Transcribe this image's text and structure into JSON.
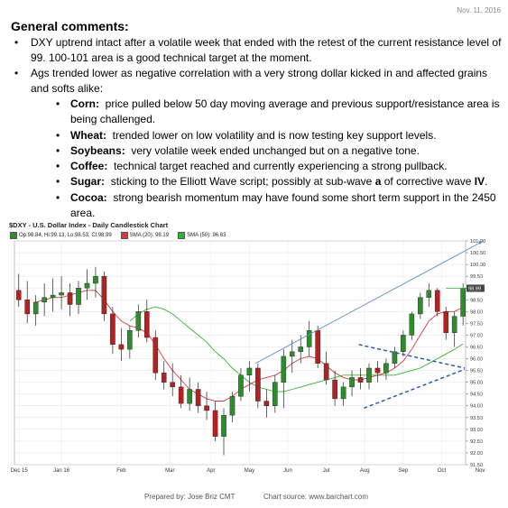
{
  "date": "Nov. 11, 2016",
  "heading": "General comments:",
  "bullets": [
    "DXY uptrend intact after a volatile week that ended with the retest of the current resistance level of 99.  100-101 area is a good technical target at the moment.",
    "Ags trended lower as negative correlation with a very strong dollar kicked in and affected grains and softs alike:"
  ],
  "sub_bullets": [
    {
      "label": "Corn:",
      "text": "price pulled below 50 day moving average and previous support/resistance area is being challenged."
    },
    {
      "label": "Wheat:",
      "text": "trended lower on low volatility and is now testing key support levels."
    },
    {
      "label": "Soybeans:",
      "text": "very volatile week ended unchanged but on a negative tone."
    },
    {
      "label": "Coffee:",
      "text": "technical target reached and currently experiencing a strong pullback."
    },
    {
      "label": "Sugar:",
      "text_before": "sticking to the Elliott Wave script; possibly at sub-wave",
      "bold_a": "a",
      "text_mid": "of corrective wave",
      "bold_iv": "IV",
      "text_end": "."
    },
    {
      "label": "Cocoa:",
      "text": "strong bearish momentum may have found some short term support in the 2450 area."
    }
  ],
  "footer": {
    "prepared_by": "Prepared by:  Jose Briz CMT",
    "source": "Chart source:  www.barchart.com"
  },
  "chart_data": {
    "type": "candlestick",
    "title": "$DXY - U.S. Dollar Index - Daily Candlestick Chart",
    "legend": [
      {
        "label": "Op:98.84, Hi:99.13, Lo:98.53, Cl:98.99",
        "color": "#2e8b2e"
      },
      {
        "label": "SMA (20): 98.19",
        "color": "#d63a3a"
      },
      {
        "label": "SMA (50): 96.63",
        "color": "#2fb52f"
      }
    ],
    "ylim": [
      91.5,
      101.0
    ],
    "y_ticks": [
      "101.00",
      "100.50",
      "100.00",
      "99.50",
      "99.00",
      "98.50",
      "98.00",
      "97.50",
      "97.00",
      "96.50",
      "96.00",
      "95.50",
      "95.00",
      "94.50",
      "94.00",
      "93.50",
      "93.00",
      "92.50",
      "92.00",
      "91.50"
    ],
    "last_price_label": "98.99",
    "month_labels": [
      "Dec 15",
      "Jan 16",
      "Feb",
      "Mar",
      "Apr",
      "May",
      "Jun",
      "Jul",
      "Aug",
      "Sep",
      "Oct",
      "Nov"
    ],
    "month_positions": [
      0.05,
      5,
      12,
      17.7,
      22.5,
      27,
      31.5,
      36,
      40.5,
      45,
      49.5,
      54
    ],
    "weeks": [
      {
        "o": 98.9,
        "h": 99.6,
        "l": 98.2,
        "c": 98.5
      },
      {
        "o": 98.5,
        "h": 99.3,
        "l": 97.5,
        "c": 97.9
      },
      {
        "o": 97.9,
        "h": 98.7,
        "l": 97.4,
        "c": 98.4
      },
      {
        "o": 98.4,
        "h": 99.2,
        "l": 97.8,
        "c": 98.6
      },
      {
        "o": 98.6,
        "h": 99.4,
        "l": 98.0,
        "c": 98.7
      },
      {
        "o": 98.7,
        "h": 99.5,
        "l": 98.1,
        "c": 98.8
      },
      {
        "o": 98.8,
        "h": 99.2,
        "l": 97.8,
        "c": 98.3
      },
      {
        "o": 98.3,
        "h": 99.3,
        "l": 97.9,
        "c": 99.0
      },
      {
        "o": 99.0,
        "h": 99.8,
        "l": 98.5,
        "c": 99.2
      },
      {
        "o": 99.2,
        "h": 99.9,
        "l": 98.6,
        "c": 99.5
      },
      {
        "o": 99.5,
        "h": 99.7,
        "l": 97.6,
        "c": 97.9
      },
      {
        "o": 97.9,
        "h": 98.2,
        "l": 96.2,
        "c": 96.6
      },
      {
        "o": 96.6,
        "h": 97.3,
        "l": 95.9,
        "c": 96.4
      },
      {
        "o": 96.4,
        "h": 97.4,
        "l": 96.0,
        "c": 97.2
      },
      {
        "o": 97.2,
        "h": 98.3,
        "l": 96.9,
        "c": 98.0
      },
      {
        "o": 98.0,
        "h": 98.5,
        "l": 96.7,
        "c": 96.9
      },
      {
        "o": 96.9,
        "h": 97.2,
        "l": 95.1,
        "c": 95.4
      },
      {
        "o": 95.4,
        "h": 95.9,
        "l": 94.7,
        "c": 95.0
      },
      {
        "o": 95.0,
        "h": 95.8,
        "l": 94.4,
        "c": 94.8
      },
      {
        "o": 94.8,
        "h": 95.3,
        "l": 93.9,
        "c": 94.1
      },
      {
        "o": 94.1,
        "h": 95.2,
        "l": 93.8,
        "c": 94.7
      },
      {
        "o": 94.7,
        "h": 95.0,
        "l": 93.7,
        "c": 94.0
      },
      {
        "o": 94.0,
        "h": 94.6,
        "l": 93.4,
        "c": 93.8
      },
      {
        "o": 93.8,
        "h": 94.2,
        "l": 92.5,
        "c": 92.7
      },
      {
        "o": 92.7,
        "h": 93.9,
        "l": 91.9,
        "c": 93.6
      },
      {
        "o": 93.6,
        "h": 94.6,
        "l": 93.3,
        "c": 94.4
      },
      {
        "o": 94.4,
        "h": 95.6,
        "l": 94.2,
        "c": 95.3
      },
      {
        "o": 95.3,
        "h": 95.9,
        "l": 94.6,
        "c": 95.6
      },
      {
        "o": 95.6,
        "h": 95.8,
        "l": 93.9,
        "c": 94.2
      },
      {
        "o": 94.2,
        "h": 94.7,
        "l": 93.5,
        "c": 94.0
      },
      {
        "o": 94.0,
        "h": 95.3,
        "l": 93.7,
        "c": 95.0
      },
      {
        "o": 95.0,
        "h": 96.4,
        "l": 93.9,
        "c": 96.1
      },
      {
        "o": 96.1,
        "h": 96.8,
        "l": 95.4,
        "c": 96.3
      },
      {
        "o": 96.3,
        "h": 97.0,
        "l": 95.8,
        "c": 96.5
      },
      {
        "o": 96.5,
        "h": 97.6,
        "l": 96.1,
        "c": 97.2
      },
      {
        "o": 97.2,
        "h": 97.4,
        "l": 95.6,
        "c": 95.8
      },
      {
        "o": 95.8,
        "h": 96.3,
        "l": 94.9,
        "c": 95.1
      },
      {
        "o": 95.1,
        "h": 95.5,
        "l": 94.0,
        "c": 94.3
      },
      {
        "o": 94.3,
        "h": 95.0,
        "l": 94.0,
        "c": 94.8
      },
      {
        "o": 94.8,
        "h": 95.5,
        "l": 94.4,
        "c": 95.2
      },
      {
        "o": 95.2,
        "h": 95.6,
        "l": 94.7,
        "c": 95.0
      },
      {
        "o": 95.0,
        "h": 95.8,
        "l": 94.7,
        "c": 95.6
      },
      {
        "o": 95.6,
        "h": 95.9,
        "l": 95.0,
        "c": 95.4
      },
      {
        "o": 95.4,
        "h": 96.0,
        "l": 95.1,
        "c": 95.8
      },
      {
        "o": 95.8,
        "h": 96.5,
        "l": 95.6,
        "c": 96.3
      },
      {
        "o": 96.3,
        "h": 97.2,
        "l": 96.1,
        "c": 97.0
      },
      {
        "o": 97.0,
        "h": 98.0,
        "l": 96.8,
        "c": 97.9
      },
      {
        "o": 97.9,
        "h": 98.8,
        "l": 97.7,
        "c": 98.6
      },
      {
        "o": 98.6,
        "h": 99.2,
        "l": 98.2,
        "c": 98.9
      },
      {
        "o": 98.9,
        "h": 99.0,
        "l": 97.8,
        "c": 98.0
      },
      {
        "o": 98.0,
        "h": 98.2,
        "l": 96.8,
        "c": 97.1
      },
      {
        "o": 97.1,
        "h": 98.0,
        "l": 96.5,
        "c": 97.8
      },
      {
        "o": 97.8,
        "h": 99.2,
        "l": 97.4,
        "c": 98.99
      }
    ],
    "sma20": [
      98.4,
      98.5,
      98.6,
      98.6,
      98.7,
      98.8,
      98.9,
      98.9,
      98.5,
      98.0,
      97.6,
      97.4,
      97.3,
      97.1,
      96.6,
      96.0,
      95.5,
      95.1,
      94.7,
      94.5,
      94.3,
      94.2,
      94.2,
      94.4,
      94.7,
      94.9,
      95.1,
      95.2,
      95.3,
      95.5,
      95.8,
      96.0,
      96.1,
      96.0,
      95.7,
      95.4,
      95.2,
      95.1,
      95.1,
      95.2,
      95.3,
      95.4,
      95.6,
      95.9,
      96.4,
      97.0,
      97.6,
      97.9,
      98.0,
      98.0,
      98.19
    ],
    "sma20_start": 2,
    "sma50": [
      97.6,
      97.9,
      98.1,
      98.2,
      98.1,
      97.9,
      97.6,
      97.3,
      97.0,
      96.7,
      96.3,
      96.0,
      95.6,
      95.3,
      95.0,
      94.8,
      94.7,
      94.6,
      94.6,
      94.7,
      94.8,
      94.9,
      95.0,
      95.1,
      95.2,
      95.3,
      95.3,
      95.3,
      95.3,
      95.3,
      95.3,
      95.3,
      95.4,
      95.5,
      95.6,
      95.8,
      96.0,
      96.2,
      96.4,
      96.63
    ],
    "sma50_start": 13,
    "annotations": [
      {
        "type": "uptrend-line",
        "from": [
          27.7,
          95.8
        ],
        "to": [
          54.4,
          101.0
        ]
      },
      {
        "type": "resistance-line",
        "from": [
          50,
          98.99
        ],
        "to": [
          53.6,
          98.99
        ]
      },
      {
        "type": "triangle-upper",
        "from": [
          39.8,
          96.6
        ],
        "to": [
          52.2,
          95.6
        ]
      },
      {
        "type": "triangle-lower",
        "from": [
          40.4,
          93.9
        ],
        "to": [
          52.2,
          95.55
        ]
      }
    ]
  }
}
